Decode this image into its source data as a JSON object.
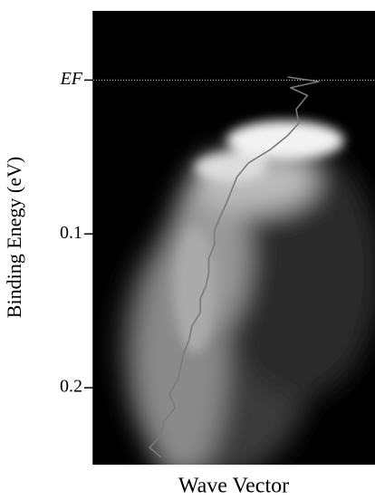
{
  "chart_data": {
    "type": "line",
    "xlabel": "Wave Vector",
    "ylabel": "Binding Enegy (eV)",
    "xlim": [
      0,
      1
    ],
    "ylim": [
      0.25,
      -0.045
    ],
    "yticks": [
      {
        "value": 0,
        "label": "EF"
      },
      0.1,
      0.2
    ],
    "series": [
      {
        "color": "#7a7a7a",
        "x": [
          0.69,
          0.8,
          0.7,
          0.76,
          0.72,
          0.73,
          0.69,
          0.63,
          0.55,
          0.51,
          0.49,
          0.47,
          0.45,
          0.43,
          0.43,
          0.41,
          0.41,
          0.4,
          0.38,
          0.38,
          0.35,
          0.34,
          0.32,
          0.31,
          0.3,
          0.27,
          0.29,
          0.25,
          0.24,
          0.2,
          0.24
        ],
        "values": [
          -0.002,
          0.001,
          0.005,
          0.01,
          0.019,
          0.028,
          0.036,
          0.045,
          0.054,
          0.063,
          0.072,
          0.081,
          0.089,
          0.098,
          0.107,
          0.116,
          0.125,
          0.134,
          0.142,
          0.151,
          0.16,
          0.169,
          0.178,
          0.186,
          0.195,
          0.204,
          0.213,
          0.222,
          0.231,
          0.239,
          0.245
        ]
      }
    ]
  }
}
